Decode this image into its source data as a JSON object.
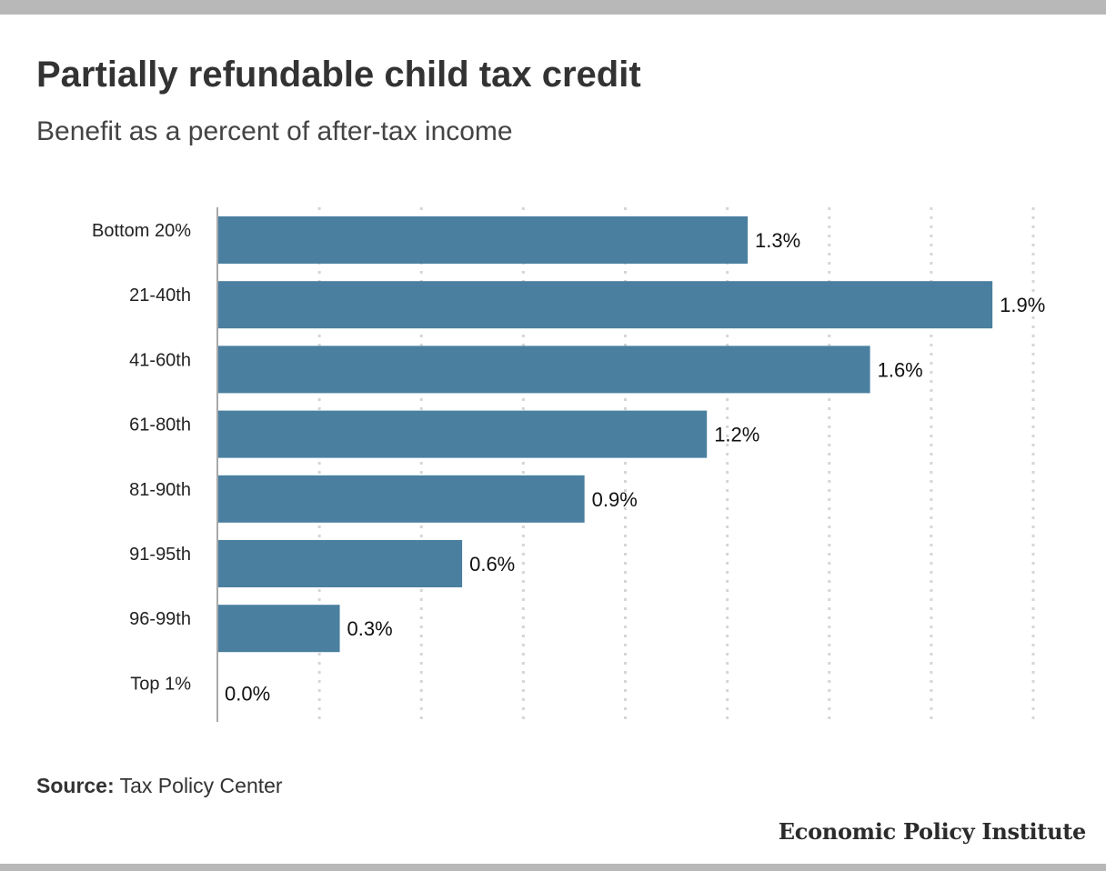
{
  "title": "Partially refundable child tax credit",
  "subtitle": "Benefit as a percent of after-tax income",
  "source": {
    "label": "Source:",
    "text": "Tax Policy Center"
  },
  "brand": "Economic Policy Institute",
  "colors": {
    "bar": "#4a7fa0",
    "grid": "#d6d6d6",
    "axis": "#a8a8a8",
    "border": "#b8b8b8"
  },
  "chart_data": {
    "type": "bar",
    "orientation": "horizontal",
    "categories": [
      "Bottom 20%",
      "21-40th",
      "41-60th",
      "61-80th",
      "81-90th",
      "91-95th",
      "96-99th",
      "Top 1%"
    ],
    "values": [
      1.3,
      1.9,
      1.6,
      1.2,
      0.9,
      0.6,
      0.3,
      0.0
    ],
    "value_labels": [
      "1.3%",
      "1.9%",
      "1.6%",
      "1.2%",
      "0.9%",
      "0.6%",
      "0.3%",
      "0.0%"
    ],
    "title": "Partially refundable child tax credit",
    "subtitle": "Benefit as a percent of after-tax income",
    "xlim": [
      0,
      2.0
    ],
    "grid": true,
    "grid_style": "dotted vertical"
  }
}
